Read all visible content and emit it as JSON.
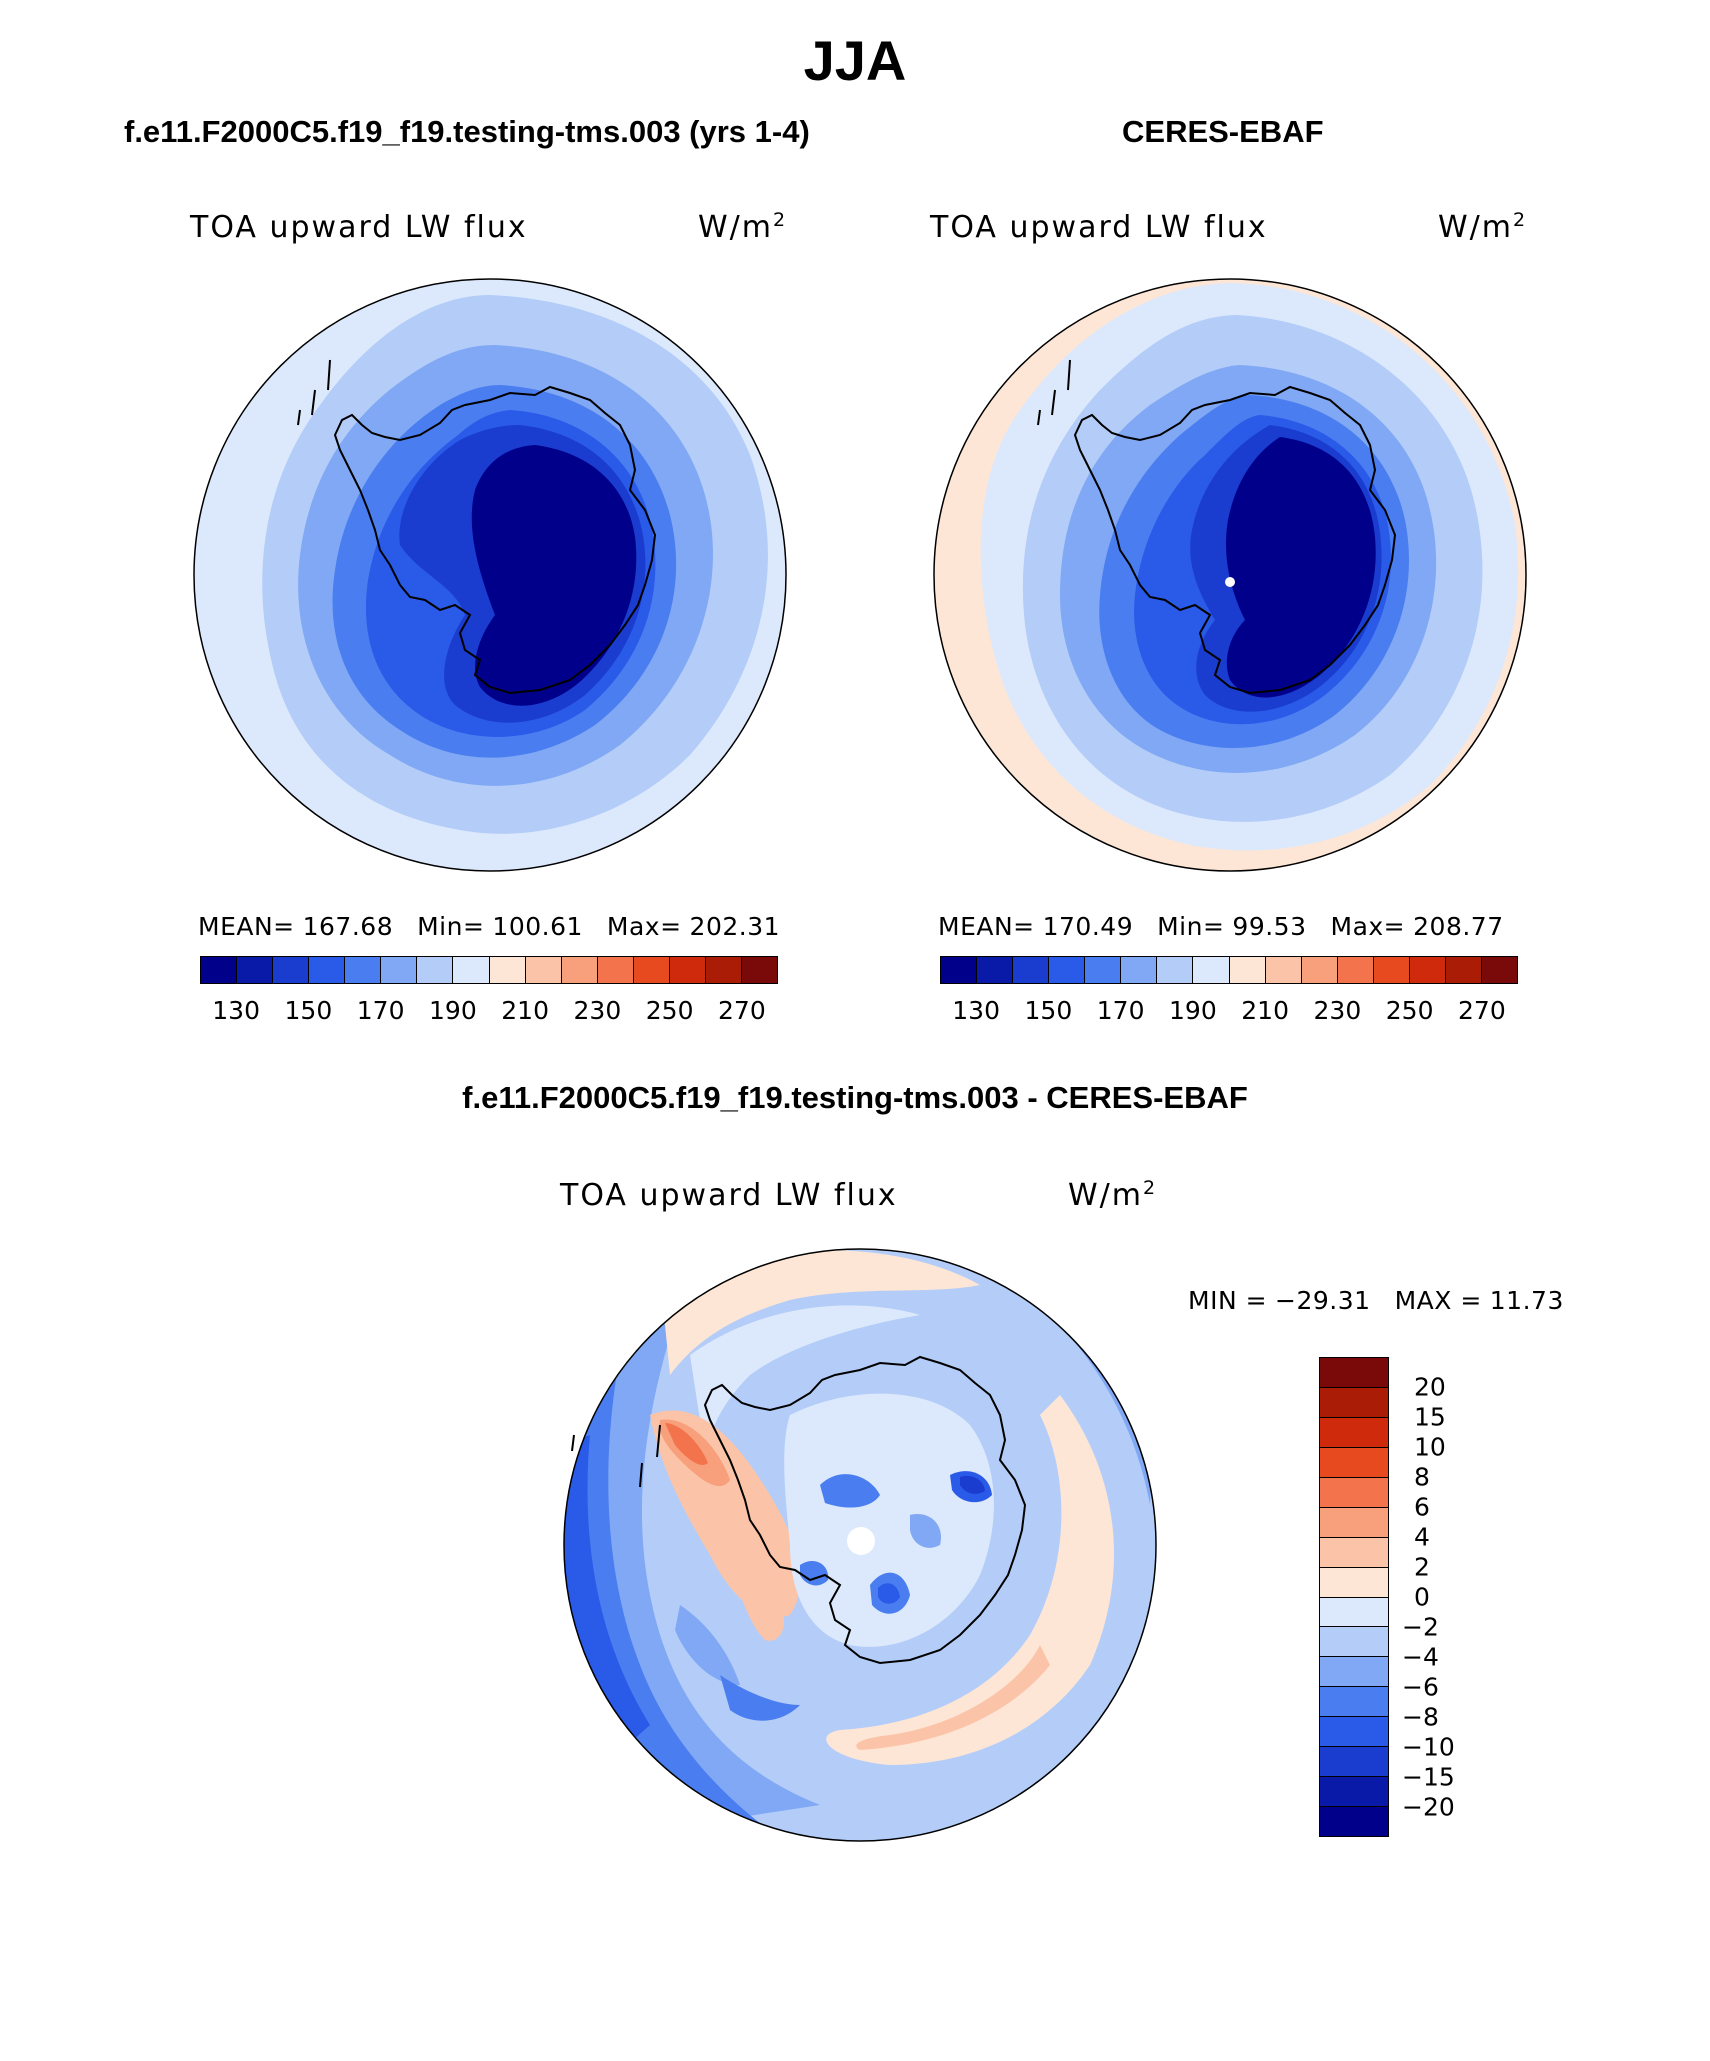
{
  "figure": {
    "title": "JJA",
    "season": "JJA"
  },
  "panels": [
    {
      "case_title": "f.e11.F2000C5.f19_f19.testing-tms.003 (yrs 1-4)",
      "variable": "TOA upward LW flux",
      "units_base": "W/m",
      "units_exp": "2",
      "stats": {
        "mean_label": "MEAN=",
        "mean": "167.68",
        "min_label": "Min=",
        "min": "100.61",
        "max_label": "Max=",
        "max": "202.31"
      }
    },
    {
      "case_title": "CERES-EBAF",
      "variable": "TOA upward LW flux",
      "units_base": "W/m",
      "units_exp": "2",
      "stats": {
        "mean_label": "MEAN=",
        "mean": "170.49",
        "min_label": "Min=",
        "min": "99.53",
        "max_label": "Max=",
        "max": "208.77"
      }
    }
  ],
  "abs_colorbar": {
    "colors": [
      "#00008b",
      "#0a1aa8",
      "#1a3ccf",
      "#2a5ae8",
      "#4a7ef0",
      "#80a8f4",
      "#b3cdf8",
      "#dce9fc",
      "#fde6d6",
      "#fbc4a8",
      "#f89f7c",
      "#f2734c",
      "#e64a1e",
      "#d02a0c",
      "#aa1c06",
      "#7a0a0a"
    ],
    "tick_labels": [
      "130",
      "150",
      "170",
      "190",
      "210",
      "230",
      "250",
      "270"
    ]
  },
  "diff_panel": {
    "case_title": "f.e11.F2000C5.f19_f19.testing-tms.003 - CERES-EBAF",
    "variable": "TOA upward LW flux",
    "units_base": "W/m",
    "units_exp": "2",
    "min_label": "MIN =",
    "min": "−29.31",
    "max_label": "MAX =",
    "max": "11.73"
  },
  "diff_colorbar": {
    "colors": [
      "#7a0a0a",
      "#aa1c06",
      "#d02a0c",
      "#e64a1e",
      "#f2734c",
      "#f89f7c",
      "#fbc4a8",
      "#fde6d6",
      "#dce9fc",
      "#b3cdf8",
      "#80a8f4",
      "#4a7ef0",
      "#2a5ae8",
      "#1a3ccf",
      "#0a1aa8",
      "#00008b"
    ],
    "tick_labels": [
      "20",
      "15",
      "10",
      "8",
      "6",
      "4",
      "2",
      "0",
      "−2",
      "−4",
      "−6",
      "−8",
      "−10",
      "−15",
      "−20"
    ]
  },
  "map_colors": {
    "deep": "#00008b",
    "dark": "#1a3ccf",
    "mid": "#2a5ae8",
    "med": "#4a7ef0",
    "light": "#80a8f4",
    "pale": "#b3cdf8",
    "faint": "#dce9fc",
    "warm1": "#fde6d6",
    "warm2": "#fbc4a8",
    "warm3": "#f89f7c",
    "warm4": "#f2734c",
    "warm5": "#e64a1e"
  }
}
